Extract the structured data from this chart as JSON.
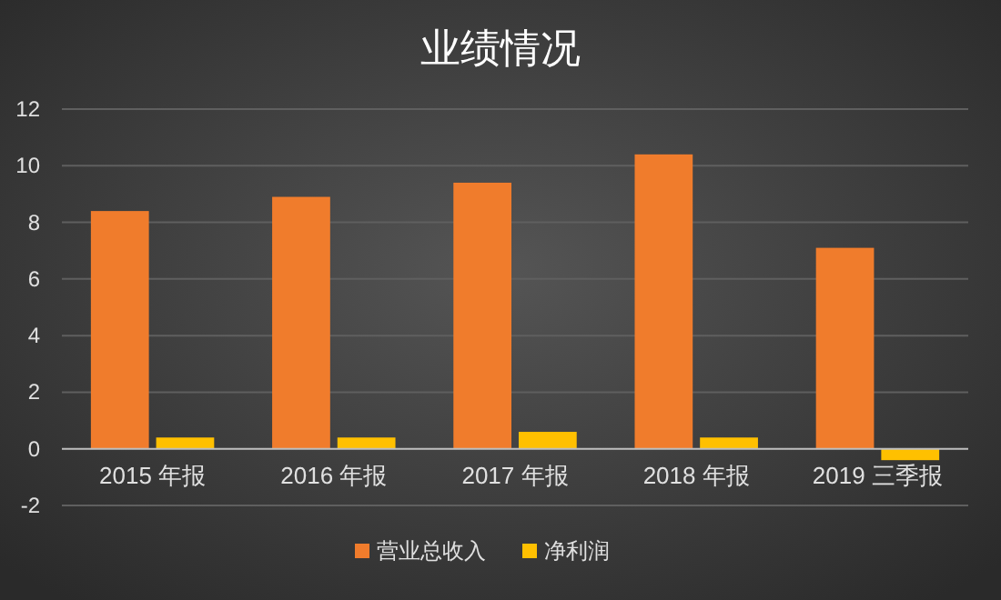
{
  "chart_data": {
    "type": "bar",
    "title": "业绩情况",
    "categories": [
      "2015 年报",
      "2016 年报",
      "2017 年报",
      "2018 年报",
      "2019 三季报"
    ],
    "series": [
      {
        "name": "营业总收入",
        "color": "#f07c2c",
        "values": [
          8.4,
          8.9,
          9.4,
          10.4,
          7.1
        ]
      },
      {
        "name": "净利润",
        "color": "#ffc000",
        "values": [
          0.4,
          0.4,
          0.6,
          0.4,
          -0.4
        ]
      }
    ],
    "ylim": [
      -2,
      12
    ],
    "yticks": [
      -2,
      0,
      2,
      4,
      6,
      8,
      10,
      12
    ],
    "grid": "y",
    "legend": "bottom"
  }
}
